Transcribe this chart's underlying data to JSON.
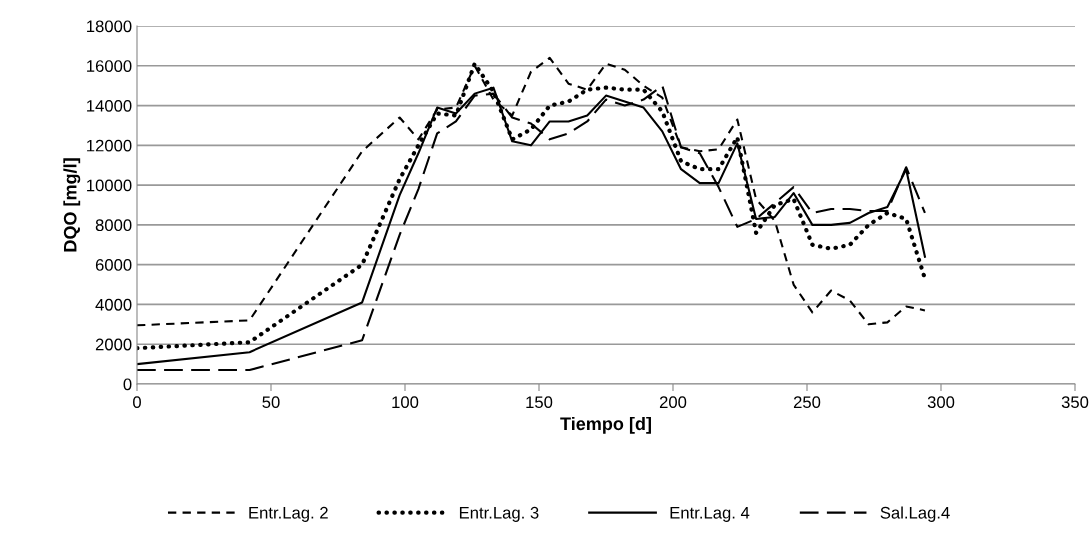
{
  "chart_data": {
    "type": "line",
    "xlabel": "Tiempo [d]",
    "ylabel": "DQO [mg/l]",
    "x": [
      0,
      42,
      84,
      98,
      105,
      112,
      119,
      126,
      133,
      140,
      147,
      154,
      161,
      168,
      175,
      182,
      189,
      196,
      203,
      210,
      217,
      224,
      231,
      238,
      245,
      252,
      259,
      266,
      273,
      280,
      287,
      294
    ],
    "series": [
      {
        "name": "Entr.Lag. 2",
        "color": "#000000",
        "line_style": "dashed",
        "values": [
          2950,
          3200,
          11700,
          13400,
          12300,
          13800,
          13900,
          16000,
          14300,
          13500,
          15700,
          16400,
          15100,
          14800,
          16100,
          15800,
          15000,
          14400,
          11900,
          11700,
          11800,
          13300,
          9300,
          8200,
          5000,
          3600,
          4700,
          4200,
          3000,
          3100,
          3900,
          3700
        ]
      },
      {
        "name": "Entr.Lag. 3",
        "color": "#000000",
        "line_style": "dotted",
        "values": [
          1800,
          2100,
          6000,
          10300,
          12000,
          13600,
          13500,
          16100,
          14700,
          12300,
          12800,
          14000,
          14200,
          14800,
          14900,
          14800,
          14800,
          13700,
          11200,
          10800,
          10800,
          12400,
          7600,
          9000,
          9300,
          7000,
          6800,
          7000,
          8000,
          8600,
          8300,
          5300
        ]
      },
      {
        "name": "Entr.Lag. 4",
        "color": "#000000",
        "line_style": "solid",
        "values": [
          1000,
          1600,
          4100,
          9500,
          11600,
          13900,
          13600,
          14600,
          14900,
          12200,
          12000,
          13200,
          13200,
          13500,
          14500,
          14200,
          13900,
          12700,
          10800,
          10100,
          10100,
          12100,
          8300,
          8400,
          9600,
          8000,
          8000,
          8100,
          8600,
          8900,
          10800,
          6400
        ]
      },
      {
        "name": "Sal.Lag.4",
        "color": "#000000",
        "line_style": "dashed",
        "values": [
          700,
          700,
          2200,
          7500,
          9800,
          12600,
          13200,
          14500,
          14600,
          13400,
          13100,
          12300,
          12600,
          13200,
          14300,
          14000,
          14300,
          15000,
          11900,
          11600,
          9900,
          7900,
          8300,
          9100,
          9900,
          8600,
          8800,
          8800,
          8700,
          8700,
          10900,
          8600
        ]
      }
    ],
    "xlim": [
      0,
      350
    ],
    "xticks": [
      0,
      50,
      100,
      150,
      200,
      250,
      300,
      350
    ],
    "ylim": [
      0,
      18000
    ],
    "yticks": [
      0,
      2000,
      4000,
      6000,
      8000,
      10000,
      12000,
      14000,
      16000,
      18000
    ],
    "grid": "y",
    "legend": "bottom"
  }
}
